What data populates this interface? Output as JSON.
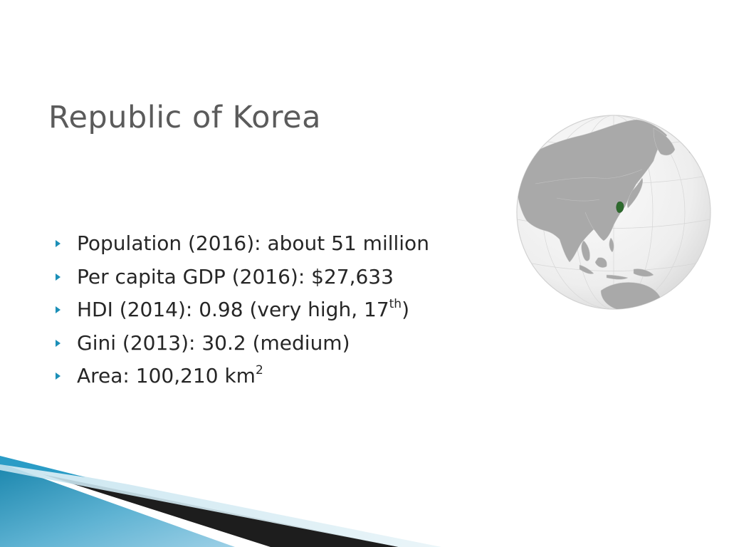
{
  "slide": {
    "title": "Republic of Korea",
    "bullets": [
      {
        "text": "Population (2016): about 51 million",
        "sup": ""
      },
      {
        "text": "Per capita GDP (2016): $27,633",
        "sup": ""
      },
      {
        "text": "HDI (2014):  0.98 (very high, 17",
        "sup": "th",
        "after": ")"
      },
      {
        "text": "Gini (2013): 30.2 (medium)",
        "sup": ""
      },
      {
        "text": "Area: 100,210 km",
        "sup": "2"
      }
    ]
  },
  "colors": {
    "bullet_arrow": "#1b8fb7",
    "title": "#5b5b5b",
    "body_text": "#262626",
    "korea_highlight": "#2e6b2e",
    "ocean": "#f2f2f2",
    "land": "#a9a9a9"
  },
  "icons": {
    "bullet": "triangle-right-icon",
    "globe": "globe-map-icon"
  }
}
